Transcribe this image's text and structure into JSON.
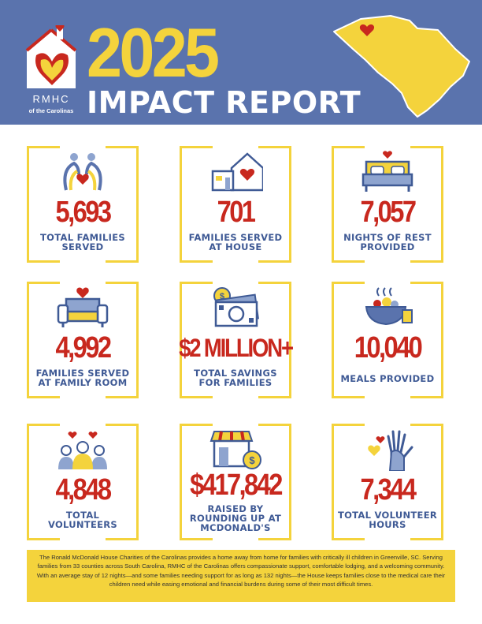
{
  "header": {
    "year": "2025",
    "title": "IMPACT REPORT",
    "logo": {
      "name": "RMHC",
      "sub": "of the Carolinas"
    },
    "state_icon": "south-carolina-map-icon"
  },
  "colors": {
    "header_bg": "#5a73ad",
    "accent_yellow": "#f4d33c",
    "number_red": "#c8281e",
    "label_blue": "#3f5a95"
  },
  "stats": [
    {
      "value": "5,693",
      "label_lines": [
        "TOTAL FAMILIES",
        "SERVED"
      ],
      "icon": "family-heart-icon"
    },
    {
      "value": "701",
      "label_lines": [
        "FAMILIES SERVED",
        "AT HOUSE"
      ],
      "icon": "house-heart-icon"
    },
    {
      "value": "7,057",
      "label_lines": [
        "NIGHTS OF REST",
        "PROVIDED"
      ],
      "icon": "bed-icon"
    },
    {
      "value": "4,992",
      "label_lines": [
        "FAMILIES SERVED",
        "AT FAMILY ROOM"
      ],
      "icon": "sofa-icon"
    },
    {
      "value": "$2 MILLION+",
      "label_lines": [
        "TOTAL SAVINGS",
        "FOR FAMILIES"
      ],
      "icon": "money-savings-icon"
    },
    {
      "value": "10,040",
      "label_lines": [
        "MEALS PROVIDED"
      ],
      "icon": "meal-bowl-icon"
    },
    {
      "value": "4,848",
      "label_lines": [
        "TOTAL",
        "VOLUNTEERS"
      ],
      "icon": "volunteers-icon"
    },
    {
      "value": "$417,842",
      "label_lines": [
        "RAISED BY",
        "ROUNDING UP AT",
        "MCDONALD'S"
      ],
      "icon": "store-coin-icon"
    },
    {
      "value": "7,344",
      "label_lines": [
        "TOTAL VOLUNTEER",
        "HOURS"
      ],
      "icon": "raised-hand-icon"
    }
  ],
  "footer": {
    "text": "The Ronald McDonald House Charities of the Carolinas provides a home away from home for families with critically ill children in Greenville, SC. Serving families from 33 counties across South Carolina, RMHC of the Carolinas offers compassionate support, comfortable lodging, and a welcoming community. With an average stay of 12 nights—and some families needing support for as long as 132 nights—the House keeps families close to the medical care their children need while easing emotional and financial burdens during some of their most difficult times."
  }
}
